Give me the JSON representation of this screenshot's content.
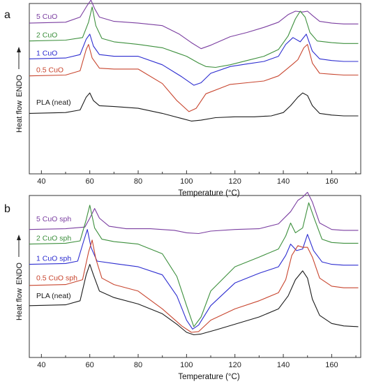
{
  "chart_data": [
    {
      "panel_letter": "a",
      "type": "line",
      "xlabel": "Temperature (°C)",
      "ylabel": "Heat flow",
      "y_arrow_label": "ENDO",
      "xlim": [
        35,
        172
      ],
      "ylim": [
        0,
        10
      ],
      "x_ticks": [
        40,
        60,
        80,
        100,
        120,
        140,
        160
      ],
      "grid": false,
      "legend": "inline labels at left of each curve",
      "series": [
        {
          "name": "5 CuO",
          "color": "#7a3da0",
          "label_y": 8.9,
          "x": [
            35,
            50,
            56,
            59,
            60.5,
            62,
            64,
            70,
            80,
            90,
            97,
            102,
            106,
            110,
            118,
            125,
            132,
            138,
            142,
            145,
            148,
            150,
            152,
            155,
            160,
            165,
            171
          ],
          "y": [
            8.85,
            8.9,
            9.2,
            9.9,
            10.2,
            9.7,
            9.2,
            8.95,
            8.85,
            8.7,
            8.2,
            7.7,
            7.35,
            7.55,
            8.05,
            8.3,
            8.6,
            8.9,
            9.35,
            9.55,
            9.5,
            9.55,
            9.3,
            8.95,
            8.85,
            8.8,
            8.8
          ]
        },
        {
          "name": "2 CuO",
          "color": "#3c8f3c",
          "label_y": 7.8,
          "x": [
            35,
            50,
            57,
            59.5,
            61,
            62.5,
            65,
            70,
            80,
            90,
            100,
            105,
            108,
            112,
            118,
            125,
            132,
            138,
            142,
            145,
            147,
            149,
            151,
            154,
            160,
            165,
            171
          ],
          "y": [
            7.8,
            7.85,
            8.0,
            8.9,
            9.8,
            8.7,
            7.95,
            7.75,
            7.6,
            7.4,
            6.9,
            6.5,
            6.3,
            6.25,
            6.4,
            6.65,
            6.9,
            7.3,
            8.1,
            9.1,
            9.55,
            9.2,
            8.3,
            7.8,
            7.7,
            7.65,
            7.65
          ]
        },
        {
          "name": "1 CuO",
          "color": "#2c2cd0",
          "label_y": 6.75,
          "x": [
            35,
            50,
            56,
            58.5,
            60,
            61.5,
            64,
            70,
            80,
            90,
            98,
            103,
            106,
            110,
            118,
            125,
            132,
            138,
            141,
            144,
            147,
            149.5,
            152,
            155,
            160,
            165,
            171
          ],
          "y": [
            6.75,
            6.8,
            7.0,
            7.9,
            8.2,
            7.5,
            7.0,
            6.9,
            6.9,
            6.4,
            5.7,
            5.2,
            5.35,
            5.9,
            6.3,
            6.45,
            6.6,
            6.9,
            7.6,
            8.0,
            7.75,
            8.2,
            7.2,
            6.75,
            6.65,
            6.6,
            6.6
          ]
        },
        {
          "name": "0.5 CuO",
          "color": "#c8452e",
          "label_y": 5.75,
          "x": [
            35,
            50,
            56,
            58.5,
            59.5,
            61,
            64,
            70,
            80,
            90,
            96,
            101,
            104,
            108,
            118,
            125,
            132,
            138,
            141,
            144,
            146,
            148.5,
            150,
            152,
            155,
            160,
            165,
            171
          ],
          "y": [
            5.75,
            5.8,
            6.05,
            7.3,
            7.6,
            6.8,
            6.2,
            6.15,
            6.15,
            5.3,
            4.3,
            3.65,
            3.85,
            4.7,
            5.25,
            5.35,
            5.45,
            5.75,
            6.1,
            6.45,
            6.7,
            7.4,
            7.6,
            6.5,
            5.9,
            5.85,
            5.8,
            5.8
          ]
        },
        {
          "name": "PLA (neat)",
          "color": "#1a1a1a",
          "label_y": 3.85,
          "x": [
            35,
            50,
            56,
            58.5,
            60,
            61.5,
            64,
            70,
            80,
            90,
            98,
            102,
            106,
            112,
            120,
            128,
            135,
            140,
            143,
            146,
            148,
            150,
            152,
            155,
            160,
            165,
            171
          ],
          "y": [
            3.55,
            3.6,
            3.75,
            4.5,
            4.75,
            4.3,
            4.0,
            3.95,
            3.85,
            3.55,
            3.25,
            3.1,
            3.15,
            3.3,
            3.35,
            3.35,
            3.4,
            3.6,
            4.0,
            4.5,
            4.75,
            4.6,
            4.0,
            3.55,
            3.45,
            3.4,
            3.4
          ]
        }
      ]
    },
    {
      "panel_letter": "b",
      "type": "line",
      "xlabel": "Temperature (°C)",
      "ylabel": "Heat flow",
      "y_arrow_label": "ENDO",
      "xlim": [
        35,
        172
      ],
      "ylim": [
        0,
        10
      ],
      "x_ticks": [
        40,
        60,
        80,
        100,
        120,
        140,
        160
      ],
      "grid": false,
      "legend": "inline labels at left of each curve",
      "series": [
        {
          "name": "5 CuO sph",
          "color": "#7a3da0",
          "label_y": 8.2,
          "x": [
            35,
            50,
            58,
            60,
            62,
            64,
            68,
            75,
            85,
            95,
            100,
            105,
            110,
            120,
            130,
            138,
            143,
            146,
            148,
            150,
            152,
            155,
            160,
            165,
            171
          ],
          "y": [
            7.9,
            7.95,
            8.05,
            8.6,
            9.2,
            8.6,
            8.1,
            7.95,
            7.95,
            7.85,
            7.7,
            7.65,
            7.8,
            7.9,
            7.95,
            8.25,
            9.0,
            9.7,
            9.9,
            10.2,
            9.6,
            8.3,
            7.9,
            7.85,
            7.85
          ]
        },
        {
          "name": "2 CuO sph",
          "color": "#3c8f3c",
          "label_y": 7.0,
          "x": [
            35,
            50,
            56,
            58.5,
            60,
            62,
            65,
            70,
            80,
            90,
            96,
            100,
            103,
            106,
            110,
            120,
            130,
            138,
            141,
            143,
            145,
            148,
            150.5,
            153,
            156,
            160,
            165,
            171
          ],
          "y": [
            7.0,
            7.05,
            7.2,
            8.5,
            9.4,
            8.0,
            7.3,
            7.15,
            7.0,
            6.4,
            5.0,
            3.2,
            1.9,
            2.5,
            4.1,
            5.6,
            6.2,
            6.7,
            7.5,
            8.3,
            7.7,
            8.0,
            9.55,
            8.5,
            7.3,
            7.1,
            7.05,
            7.05
          ]
        },
        {
          "name": "1 CuO sph",
          "color": "#2c2cd0",
          "label_y": 5.75,
          "x": [
            35,
            50,
            55,
            57.5,
            59,
            60.5,
            63,
            70,
            80,
            90,
            96,
            100,
            102.5,
            105,
            110,
            120,
            130,
            138,
            141,
            143,
            145.5,
            148,
            150,
            152.5,
            156,
            160,
            165,
            171
          ],
          "y": [
            5.75,
            5.8,
            5.95,
            7.2,
            7.9,
            6.8,
            5.95,
            5.8,
            5.6,
            5.1,
            3.8,
            2.3,
            1.75,
            2.0,
            3.2,
            4.6,
            5.2,
            5.6,
            6.3,
            7.0,
            6.6,
            6.7,
            7.6,
            6.6,
            5.9,
            5.75,
            5.7,
            5.7
          ]
        },
        {
          "name": "0.5 CuO sph",
          "color": "#c8452e",
          "label_y": 4.55,
          "x": [
            35,
            50,
            57,
            59.5,
            61,
            62.5,
            65,
            70,
            80,
            90,
            98,
            102,
            105,
            110,
            120,
            130,
            138,
            141,
            143.5,
            146,
            148,
            150,
            152,
            155,
            160,
            165,
            171
          ],
          "y": [
            4.45,
            4.5,
            4.8,
            6.5,
            7.25,
            6.1,
            4.9,
            4.5,
            4.1,
            3.0,
            1.95,
            1.55,
            1.6,
            2.3,
            3.0,
            3.5,
            4.0,
            4.8,
            6.3,
            6.9,
            6.8,
            6.8,
            6.2,
            4.9,
            4.4,
            4.3,
            4.3
          ]
        },
        {
          "name": "PLA (neat)",
          "color": "#1a1a1a",
          "label_y": 3.45,
          "x": [
            35,
            50,
            56,
            58.5,
            60,
            61.5,
            64,
            70,
            80,
            90,
            96,
            100,
            103,
            106,
            112,
            120,
            130,
            138,
            142,
            145,
            148,
            150,
            152,
            155,
            160,
            165,
            171
          ],
          "y": [
            3.2,
            3.25,
            3.5,
            5.1,
            5.75,
            5.1,
            4.1,
            3.7,
            3.3,
            2.7,
            2.05,
            1.55,
            1.4,
            1.45,
            1.7,
            2.05,
            2.5,
            3.0,
            3.8,
            4.8,
            5.35,
            4.9,
            3.6,
            2.6,
            2.1,
            1.95,
            1.9
          ]
        }
      ]
    }
  ]
}
